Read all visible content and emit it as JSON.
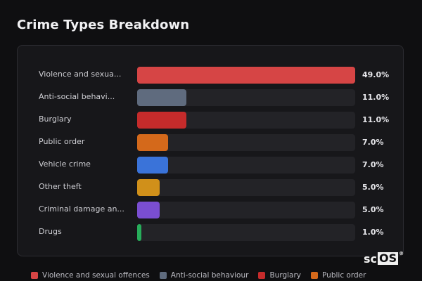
{
  "title": "Crime Types Breakdown",
  "chart_data": {
    "type": "bar",
    "orientation": "horizontal",
    "categories": [
      "Violence and sexua...",
      "Anti-social behavi...",
      "Burglary",
      "Public order",
      "Vehicle crime",
      "Other theft",
      "Criminal damage an...",
      "Drugs"
    ],
    "values": [
      49.0,
      11.0,
      11.0,
      7.0,
      7.0,
      5.0,
      5.0,
      1.0
    ],
    "value_labels": [
      "49.0%",
      "11.0%",
      "11.0%",
      "7.0%",
      "7.0%",
      "5.0%",
      "5.0%",
      "1.0%"
    ],
    "colors": [
      "#d64545",
      "#5f6b7e",
      "#c52b2b",
      "#d4691b",
      "#3a73d9",
      "#d0901a",
      "#7a4ed1",
      "#27ad5a"
    ],
    "xlim": [
      0,
      49
    ]
  },
  "legend": [
    {
      "label": "Violence and sexual offences",
      "color": "#d64545"
    },
    {
      "label": "Anti-social behaviour",
      "color": "#5f6b7e"
    },
    {
      "label": "Burglary",
      "color": "#c52b2b"
    },
    {
      "label": "Public order",
      "color": "#d4691b"
    }
  ],
  "logo": {
    "text_plain": "sc",
    "text_boxed": "OS",
    "mark": "®"
  }
}
